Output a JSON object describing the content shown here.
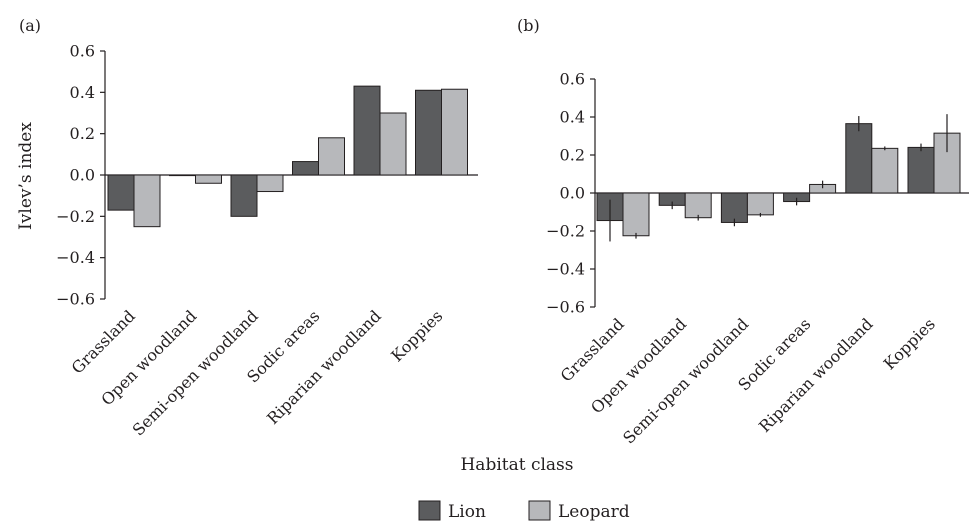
{
  "xlabel": "Habitat class",
  "legend": {
    "placement": "bottom-center",
    "items": [
      {
        "name": "Lion",
        "color": "#5b5c5e"
      },
      {
        "name": "Leopard",
        "color": "#b7b8bb"
      }
    ]
  },
  "chart_data": [
    {
      "type": "bar",
      "panel_label": "(a)",
      "ylabel": "Ivlev’s index",
      "ylim": [
        -0.6,
        0.6
      ],
      "yticks": [
        "0.6",
        "0.4",
        "0.2",
        "0.0",
        "−0.2",
        "−0.4",
        "−0.6"
      ],
      "ytick_values": [
        0.6,
        0.4,
        0.2,
        0.0,
        -0.2,
        -0.4,
        -0.6
      ],
      "categories": [
        "Grassland",
        "Open woodland",
        "Semi-open woodland",
        "Sodic areas",
        "Riparian woodland",
        "Koppies"
      ],
      "series": [
        {
          "name": "Lion",
          "color": "#5b5c5e",
          "values": [
            -0.17,
            0.0,
            -0.2,
            0.065,
            0.43,
            0.41
          ]
        },
        {
          "name": "Leopard",
          "color": "#b7b8bb",
          "values": [
            -0.25,
            -0.04,
            -0.08,
            0.18,
            0.3,
            0.415
          ]
        }
      ]
    },
    {
      "type": "bar",
      "panel_label": "(b)",
      "ylabel": "",
      "ylim": [
        -0.6,
        0.6
      ],
      "yticks": [
        "0.6",
        "0.4",
        "0.2",
        "0.0",
        "−0.2",
        "−0.4",
        "−0.6"
      ],
      "ytick_values": [
        0.6,
        0.4,
        0.2,
        0.0,
        -0.2,
        -0.4,
        -0.6
      ],
      "categories": [
        "Grassland",
        "Open woodland",
        "Semi-open woodland",
        "Sodic areas",
        "Riparian woodland",
        "Koppies"
      ],
      "series": [
        {
          "name": "Lion",
          "color": "#5b5c5e",
          "values": [
            -0.145,
            -0.065,
            -0.155,
            -0.045,
            0.365,
            0.24
          ],
          "error": [
            0.11,
            0.02,
            0.02,
            0.02,
            0.04,
            0.02
          ]
        },
        {
          "name": "Leopard",
          "color": "#b7b8bb",
          "values": [
            -0.225,
            -0.13,
            -0.115,
            0.045,
            0.235,
            0.315
          ],
          "error": [
            0.015,
            0.015,
            0.01,
            0.02,
            0.01,
            0.1
          ]
        }
      ]
    }
  ]
}
